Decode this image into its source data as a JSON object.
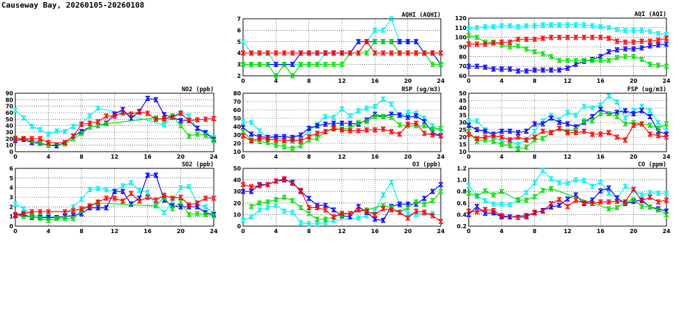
{
  "title": "Causeway Bay, 20260105-20260108",
  "series_colors": [
    "#00f0f0",
    "#0000ff",
    "#00e000",
    "#ff0000"
  ],
  "chart_data": [
    {
      "type": "line",
      "title": "AQHI (AQHI)",
      "ylim": [
        2,
        7
      ],
      "yticks": [
        "2",
        "3",
        "4",
        "5",
        "6",
        "7"
      ],
      "xticks": [
        "0",
        "4",
        "8",
        "12",
        "16",
        "20",
        "24"
      ],
      "xlim": [
        0,
        24
      ],
      "grid": true,
      "series": [
        {
          "values": [
            5,
            4,
            4,
            4,
            3,
            3,
            3,
            3,
            3,
            3,
            4,
            4,
            4,
            4,
            5,
            5,
            6,
            6,
            7,
            5,
            5,
            5,
            4,
            4,
            3
          ]
        },
        {
          "values": [
            3,
            3,
            3,
            3,
            3,
            3,
            3,
            4,
            4,
            4,
            4,
            4,
            4,
            4,
            5,
            5,
            5,
            5,
            5,
            5,
            5,
            5,
            4,
            4,
            3
          ]
        },
        {
          "values": [
            3,
            3,
            3,
            3,
            2,
            3,
            2,
            3,
            3,
            3,
            3,
            3,
            3,
            4,
            4,
            4,
            5,
            5,
            5,
            4,
            4,
            4,
            4,
            3,
            3
          ]
        },
        {
          "values": [
            4,
            4,
            4,
            4,
            4,
            4,
            4,
            4,
            4,
            4,
            4,
            4,
            4,
            4,
            4,
            5,
            4,
            4,
            4,
            4,
            4,
            4,
            4,
            4,
            4
          ]
        }
      ]
    },
    {
      "type": "line",
      "title": "AQI (AQI)",
      "ylim": [
        60,
        120
      ],
      "yticks": [
        "60",
        "70",
        "80",
        "90",
        "100",
        "110",
        "120"
      ],
      "xticks": [
        "0",
        "4",
        "8",
        "12",
        "16",
        "20",
        "24"
      ],
      "xlim": [
        0,
        24
      ],
      "grid": true,
      "series": [
        {
          "values": [
            109,
            110,
            111,
            111,
            112,
            112,
            111,
            112,
            112,
            113,
            113,
            113,
            113,
            113,
            113,
            112,
            111,
            110,
            108,
            107,
            107,
            107,
            106,
            104,
            103
          ]
        },
        {
          "values": [
            70,
            70,
            69,
            67,
            67,
            67,
            65,
            65,
            66,
            66,
            66,
            66,
            68,
            72,
            75,
            77,
            80,
            85,
            87,
            88,
            88,
            89,
            91,
            92,
            93
          ]
        },
        {
          "values": [
            102,
            100,
            95,
            95,
            92,
            90,
            91,
            88,
            85,
            83,
            80,
            76,
            76,
            76,
            76,
            76,
            76,
            76,
            79,
            80,
            80,
            77,
            72,
            71,
            70
          ]
        },
        {
          "values": [
            93,
            93,
            93,
            94,
            95,
            95,
            98,
            98,
            98,
            99,
            100,
            100,
            100,
            100,
            100,
            100,
            100,
            99,
            96,
            95,
            95,
            96,
            96,
            97,
            99
          ]
        }
      ]
    },
    {
      "type": "line",
      "title": "NO2 (ppb)",
      "ylim": [
        0,
        90
      ],
      "yticks": [
        "0",
        "10",
        "20",
        "30",
        "40",
        "50",
        "60",
        "70",
        "80",
        "90"
      ],
      "xticks": [
        "0",
        "4",
        "8",
        "12",
        "16",
        "20",
        "24"
      ],
      "xlim": [
        0,
        24
      ],
      "grid": true,
      "series": [
        {
          "values": [
            64,
            52,
            39,
            34,
            27,
            32,
            31,
            39,
            43,
            55,
            67,
            null,
            null,
            59,
            null,
            null,
            null,
            null,
            41,
            55,
            60,
            55,
            36,
            30,
            22
          ]
        },
        {
          "values": [
            17,
            19,
            14,
            13,
            10,
            9,
            14,
            24,
            31,
            38,
            40,
            44,
            58,
            65,
            51,
            62,
            82,
            80,
            57,
            53,
            48,
            48,
            36,
            29,
            19
          ]
        },
        {
          "values": [
            21,
            20,
            17,
            14,
            10,
            null,
            12,
            20,
            28,
            38,
            40,
            43,
            null,
            null,
            null,
            null,
            null,
            52,
            49,
            55,
            40,
            24,
            27,
            25,
            17
          ]
        },
        {
          "values": [
            20,
            20,
            20,
            20,
            14,
            null,
            14,
            24,
            42,
            44,
            46,
            55,
            55,
            60,
            58,
            61,
            59,
            50,
            51,
            53,
            59,
            48,
            49,
            50,
            51
          ]
        }
      ]
    },
    {
      "type": "line",
      "title": "RSP (ug/m3)",
      "ylim": [
        10,
        80
      ],
      "yticks": [
        "10",
        "20",
        "30",
        "40",
        "50",
        "60",
        "70",
        "80"
      ],
      "xticks": [
        "0",
        "4",
        "8",
        "12",
        "16",
        "20",
        "24"
      ],
      "xlim": [
        0,
        24
      ],
      "grid": true,
      "series": [
        {
          "values": [
            46,
            45,
            35,
            27,
            27,
            24,
            22,
            25,
            35,
            43,
            52,
            51,
            61,
            53,
            59,
            62,
            64,
            73,
            67,
            53,
            57,
            56,
            50,
            41,
            34
          ]
        },
        {
          "values": [
            39,
            31,
            28,
            27,
            28,
            28,
            27,
            30,
            38,
            41,
            43,
            44,
            44,
            44,
            43,
            48,
            55,
            52,
            55,
            54,
            51,
            53,
            46,
            33,
            29
          ]
        },
        {
          "values": [
            34,
            24,
            22,
            21,
            18,
            16,
            14,
            17,
            24,
            26,
            34,
            37,
            37,
            38,
            45,
            46,
            52,
            52,
            51,
            42,
            41,
            41,
            41,
            37,
            38
          ]
        },
        {
          "values": [
            29,
            23,
            26,
            25,
            24,
            23,
            24,
            23,
            28,
            32,
            34,
            38,
            36,
            35,
            35,
            36,
            36,
            37,
            34,
            31,
            43,
            44,
            32,
            30,
            29
          ]
        }
      ]
    },
    {
      "type": "line",
      "title": "FSP (ug/m3)",
      "ylim": [
        10,
        50
      ],
      "yticks": [
        "10",
        "15",
        "20",
        "25",
        "30",
        "35",
        "40",
        "45",
        "50"
      ],
      "xticks": [
        "0",
        "4",
        "8",
        "12",
        "16",
        "20",
        "24"
      ],
      "xlim": [
        0,
        24
      ],
      "grid": true,
      "series": [
        {
          "values": [
            31,
            31,
            25,
            20,
            17,
            17,
            15,
            18,
            24,
            31,
            35,
            32,
            37,
            35,
            41,
            40,
            42,
            48,
            44,
            33,
            38,
            41,
            38,
            30,
            24
          ]
        },
        {
          "values": [
            28,
            25,
            24,
            22,
            24,
            24,
            23,
            24,
            29,
            29,
            33,
            30,
            29,
            27,
            30,
            34,
            39,
            36,
            37,
            38,
            36,
            38,
            34,
            24,
            22
          ]
        },
        {
          "values": [
            24,
            17,
            18,
            17,
            15,
            14,
            12,
            13,
            18,
            19,
            23,
            26,
            24,
            25,
            31,
            31,
            36,
            36,
            34,
            29,
            30,
            29,
            28,
            26,
            29
          ]
        },
        {
          "values": [
            22,
            19,
            20,
            21,
            20,
            18,
            20,
            18,
            20,
            24,
            23,
            26,
            23,
            23,
            24,
            22,
            22,
            23,
            20,
            18,
            28,
            29,
            22,
            21,
            20
          ]
        }
      ]
    },
    {
      "type": "line",
      "title": "SO2 (ppb)",
      "ylim": [
        0,
        6
      ],
      "yticks": [
        "0",
        "1",
        "2",
        "3",
        "4",
        "5",
        "6"
      ],
      "xticks": [
        "0",
        "4",
        "8",
        "12",
        "16",
        "20",
        "24"
      ],
      "xlim": [
        0,
        24
      ],
      "grid": true,
      "series": [
        {
          "values": [
            2.3,
            1.8,
            1.2,
            1.0,
            1.0,
            0.9,
            1.0,
            2.0,
            2.8,
            3.8,
            3.9,
            3.8,
            3.6,
            4.2,
            4.5,
            3.7,
            3.5,
            2.2,
            1.4,
            2.6,
            4.0,
            4.1,
            2.3,
            2.0,
            1.3
          ]
        },
        {
          "values": [
            1.1,
            1.2,
            0.9,
            0.9,
            0.9,
            0.9,
            1.0,
            1.1,
            1.3,
            1.9,
            1.9,
            1.9,
            3.6,
            3.6,
            2.3,
            2.9,
            5.3,
            5.3,
            2.7,
            2.1,
            2.0,
            2.0,
            2.0,
            1.4,
            1.2
          ]
        },
        {
          "values": [
            1.2,
            1.0,
            1.0,
            0.8,
            0.6,
            0.8,
            0.8,
            0.8,
            1.6,
            2.1,
            2.4,
            null,
            null,
            null,
            null,
            null,
            null,
            2.1,
            3.0,
            1.8,
            2.5,
            1.2,
            1.3,
            1.2,
            1.1
          ]
        },
        {
          "values": [
            1.2,
            1.3,
            1.5,
            1.5,
            1.5,
            null,
            1.5,
            1.6,
            1.8,
            2.1,
            2.5,
            2.9,
            2.9,
            2.6,
            3.4,
            2.6,
            3.0,
            2.7,
            3.2,
            2.9,
            3.0,
            2.2,
            2.4,
            2.9,
            2.9
          ]
        }
      ]
    },
    {
      "type": "line",
      "title": "O3 (ppb)",
      "ylim": [
        0,
        50
      ],
      "yticks": [
        "0",
        "10",
        "20",
        "30",
        "40",
        "50"
      ],
      "xticks": [
        "0",
        "4",
        "8",
        "12",
        "16",
        "20",
        "24"
      ],
      "xlim": [
        0,
        24
      ],
      "grid": true,
      "series": [
        {
          "values": [
            5,
            8,
            14,
            16,
            18,
            13,
            12,
            3,
            2,
            2,
            3,
            5,
            null,
            null,
            7,
            9,
            13,
            27,
            38,
            18,
            11,
            10,
            11,
            11,
            null
          ]
        },
        {
          "values": [
            30,
            30,
            36,
            36,
            39,
            40,
            38,
            30,
            24,
            18,
            18,
            14,
            9,
            8,
            17,
            12,
            6,
            5,
            17,
            19,
            19,
            19,
            24,
            30,
            36
          ]
        },
        {
          "values": [
            null,
            17,
            20,
            21,
            23,
            25,
            22,
            16,
            11,
            6,
            6,
            8,
            10,
            null,
            null,
            14,
            null,
            18,
            16,
            12,
            16,
            21,
            19,
            22,
            30
          ]
        },
        {
          "values": [
            36,
            34,
            35,
            36,
            39,
            41,
            37,
            31,
            16,
            16,
            14,
            8,
            11,
            11,
            14,
            13,
            10,
            15,
            14,
            12,
            7,
            13,
            12,
            9,
            4
          ]
        }
      ]
    },
    {
      "type": "line",
      "title": "CO (ppm)",
      "ylim": [
        0.2,
        1.2
      ],
      "yticks": [
        "0.2",
        "0.4",
        "0.6",
        "0.8",
        "1.0",
        "1.2"
      ],
      "xticks": [
        "0",
        "4",
        "8",
        "12",
        "16",
        "20",
        "24"
      ],
      "xlim": [
        0,
        24
      ],
      "grid": true,
      "series": [
        {
          "values": [
            0.9,
            0.73,
            0.64,
            0.58,
            0.58,
            0.57,
            0.66,
            0.78,
            0.95,
            1.16,
            1.02,
            0.95,
            0.94,
            1.0,
            0.99,
            0.89,
            0.96,
            0.77,
            0.68,
            0.89,
            0.82,
            0.74,
            0.78,
            0.77,
            0.77
          ]
        },
        {
          "values": [
            0.4,
            0.54,
            0.42,
            0.43,
            0.36,
            0.36,
            null,
            0.38,
            0.43,
            0.47,
            0.53,
            0.56,
            0.67,
            0.74,
            0.59,
            0.65,
            0.81,
            0.86,
            0.69,
            0.59,
            0.63,
            0.65,
            0.53,
            0.5,
            0.46
          ]
        },
        {
          "values": [
            0.77,
            0.72,
            0.81,
            0.74,
            0.8,
            null,
            0.65,
            0.65,
            0.71,
            0.82,
            0.85,
            null,
            null,
            null,
            null,
            null,
            null,
            0.5,
            0.52,
            0.61,
            0.66,
            0.54,
            0.53,
            0.48,
            0.4
          ]
        },
        {
          "values": [
            0.46,
            0.45,
            0.49,
            0.47,
            0.38,
            null,
            0.35,
            0.36,
            0.44,
            0.46,
            0.59,
            0.66,
            0.54,
            0.65,
            0.6,
            0.59,
            0.62,
            0.62,
            0.63,
            0.62,
            0.84,
            0.64,
            0.7,
            0.62,
            0.65
          ]
        }
      ]
    }
  ]
}
